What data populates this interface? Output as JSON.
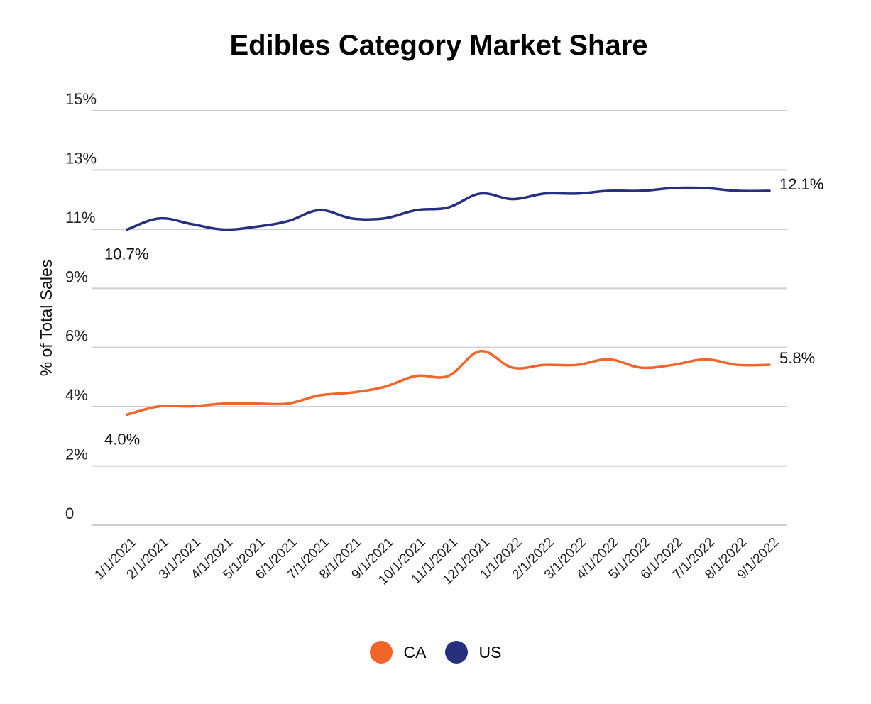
{
  "chart_data": {
    "type": "line",
    "title": "Edibles Category Market Share",
    "xlabel": "",
    "ylabel": "% of Total Sales",
    "ylim": [
      0,
      15
    ],
    "y_ticks": [
      {
        "value": 0,
        "label": "0"
      },
      {
        "value": 2.14,
        "label": "2%"
      },
      {
        "value": 4.29,
        "label": "4%"
      },
      {
        "value": 6.43,
        "label": "6%"
      },
      {
        "value": 8.57,
        "label": "9%"
      },
      {
        "value": 10.71,
        "label": "11%"
      },
      {
        "value": 12.86,
        "label": "13%"
      },
      {
        "value": 15,
        "label": "15%"
      }
    ],
    "grid": true,
    "legend_position": "bottom",
    "categories": [
      "1/1/2021",
      "2/1/2021",
      "3/1/2021",
      "4/1/2021",
      "5/1/2021",
      "6/1/2021",
      "7/1/2021",
      "8/1/2021",
      "9/1/2021",
      "10/1/2021",
      "11/1/2021",
      "12/1/2021",
      "1/1/2022",
      "2/1/2022",
      "3/1/2022",
      "4/1/2022",
      "5/1/2022",
      "6/1/2022",
      "7/1/2022",
      "8/1/2022",
      "9/1/2022"
    ],
    "series": [
      {
        "name": "CA",
        "color": "#f0652a",
        "values": [
          4.0,
          4.3,
          4.3,
          4.4,
          4.4,
          4.4,
          4.7,
          4.8,
          5.0,
          5.4,
          5.4,
          6.3,
          5.7,
          5.8,
          5.8,
          6.0,
          5.7,
          5.8,
          6.0,
          5.8,
          5.8
        ],
        "data_labels": [
          {
            "index": 0,
            "text": "4.0%"
          },
          {
            "index": 20,
            "text": "5.8%"
          }
        ]
      },
      {
        "name": "US",
        "color": "#26307f",
        "values": [
          10.7,
          11.1,
          10.9,
          10.7,
          10.8,
          11.0,
          11.4,
          11.1,
          11.1,
          11.4,
          11.5,
          12.0,
          11.8,
          12.0,
          12.0,
          12.1,
          12.1,
          12.2,
          12.2,
          12.1,
          12.1
        ],
        "data_labels": [
          {
            "index": 0,
            "text": "10.7%"
          },
          {
            "index": 20,
            "text": "12.1%"
          }
        ]
      }
    ]
  }
}
